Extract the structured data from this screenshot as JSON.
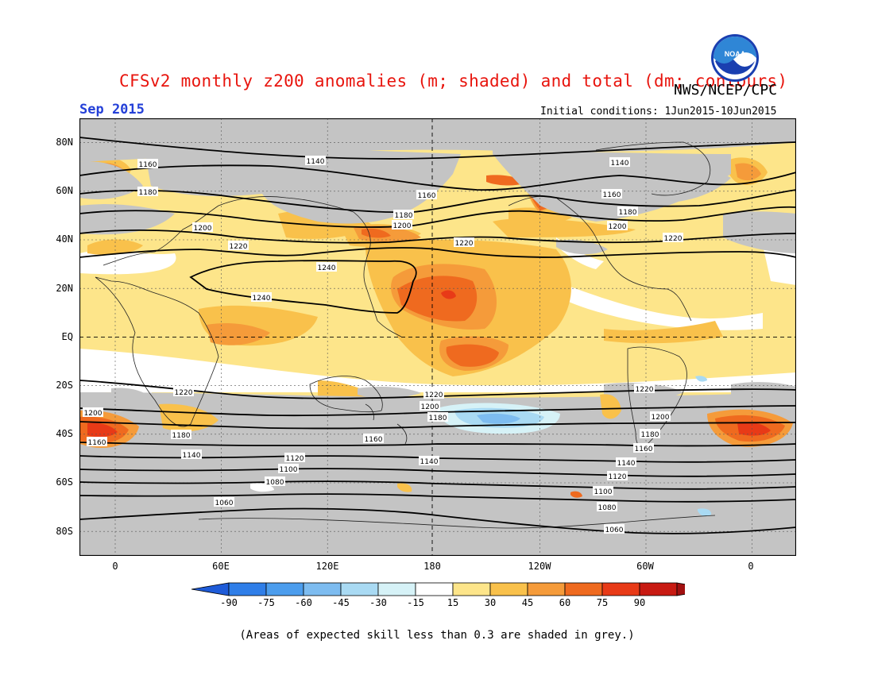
{
  "header": {
    "title": "CFSv2 monthly z200 anomalies (m; shaded) and total (dm; contours)",
    "org": "NWS/NCEP/CPC",
    "logo_text": "NOAA",
    "month": "Sep 2015",
    "init_conditions": "Initial conditions: 1Jun2015-10Jun2015"
  },
  "map": {
    "lat_labels": [
      "80N",
      "60N",
      "40N",
      "20N",
      "EQ",
      "20S",
      "40S",
      "60S",
      "80S"
    ],
    "lon_labels": [
      "0",
      "60E",
      "120E",
      "180",
      "120W",
      "60W",
      "0"
    ],
    "contour_labels": {
      "north": [
        "1140",
        "1140",
        "1160",
        "1160",
        "1160",
        "1180",
        "1180",
        "1180",
        "1200",
        "1200",
        "1200",
        "1220",
        "1220",
        "1220",
        "1240",
        "1240"
      ],
      "south": [
        "1220",
        "1220",
        "1220",
        "1200",
        "1200",
        "1200",
        "1180",
        "1180",
        "1180",
        "1160",
        "1160",
        "1160",
        "1140",
        "1140",
        "1140",
        "1120",
        "1120",
        "1100",
        "1100",
        "1080",
        "1080",
        "1060",
        "1060"
      ]
    }
  },
  "colorbar": {
    "ticks": [
      "-90",
      "-75",
      "-60",
      "-45",
      "-30",
      "-15",
      "15",
      "30",
      "45",
      "60",
      "75",
      "90"
    ],
    "colors": [
      "#1e5bd8",
      "#2f7ee8",
      "#4c9ded",
      "#7dbcf0",
      "#a9daf3",
      "#d6f2f7",
      "#ffffff",
      "#fde58a",
      "#f9c14b",
      "#f59b3a",
      "#ef6a1f",
      "#e83a17",
      "#c81a12",
      "#a11010"
    ]
  },
  "legend_text": "(Areas of expected skill less than 0.3 are shaded in grey.)",
  "colors": {
    "title": "#e8140d",
    "month": "#2440d8",
    "skill_grey": "#c4c4c4"
  }
}
